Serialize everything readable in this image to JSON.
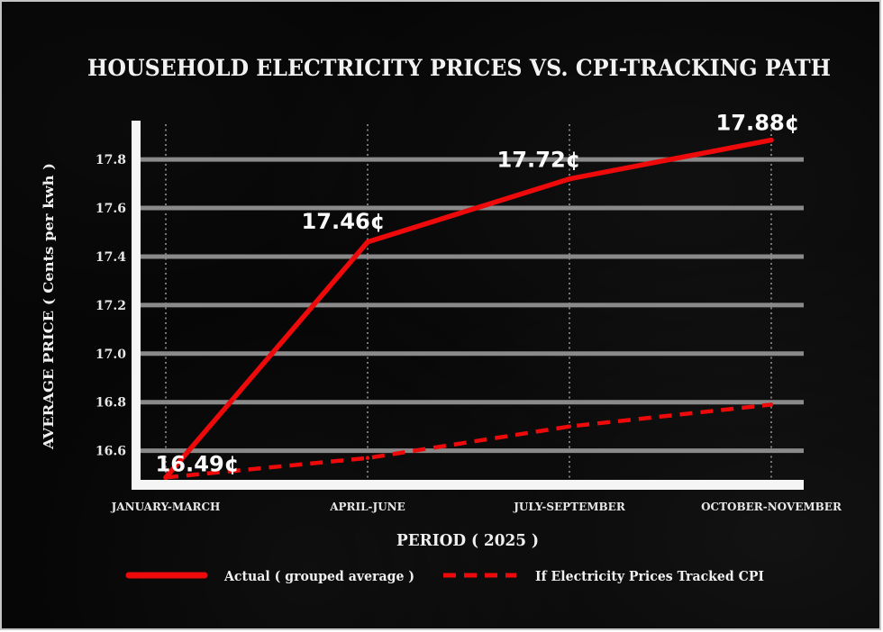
{
  "chart_data": {
    "type": "line",
    "title": "HOUSEHOLD ELECTRICITY PRICES VS. CPI-TRACKING PATH",
    "xlabel": "PERIOD ( 2025 )",
    "ylabel": "AVERAGE PRICE ( Cents per kwh )",
    "categories": [
      "JANUARY-MARCH",
      "APRIL-JUNE",
      "JULY-SEPTEMBER",
      "OCTOBER-NOVEMBER"
    ],
    "series": [
      {
        "name": "Actual ( grouped average )",
        "style": "solid",
        "color": "#ee0a0a",
        "values": [
          16.49,
          17.46,
          17.72,
          17.88
        ],
        "data_labels": [
          "16.49¢",
          "17.46¢",
          "17.72¢",
          "17.88¢"
        ]
      },
      {
        "name": "If Electricity Prices Tracked CPI",
        "style": "dashed",
        "color": "#ee0a0a",
        "values": [
          16.49,
          16.57,
          16.7,
          16.79
        ]
      }
    ],
    "ylim": [
      16.48,
      17.96
    ],
    "yticks": [
      16.6,
      16.8,
      17.0,
      17.2,
      17.4,
      17.6,
      17.8
    ],
    "ytick_labels": [
      "16.6",
      "16.8",
      "17.0",
      "17.2",
      "17.4",
      "17.6",
      "17.8"
    ],
    "grid": {
      "horizontal": "solid",
      "vertical": "dotted"
    },
    "legend_position": "bottom"
  },
  "theme": {
    "background": "#060606",
    "text": "#f2f2f2",
    "gridline": "#8a8a8a",
    "vertical_dots": "#9c9c9c",
    "axis": "#f5f5f5",
    "series_red": "#ee0a0a"
  }
}
